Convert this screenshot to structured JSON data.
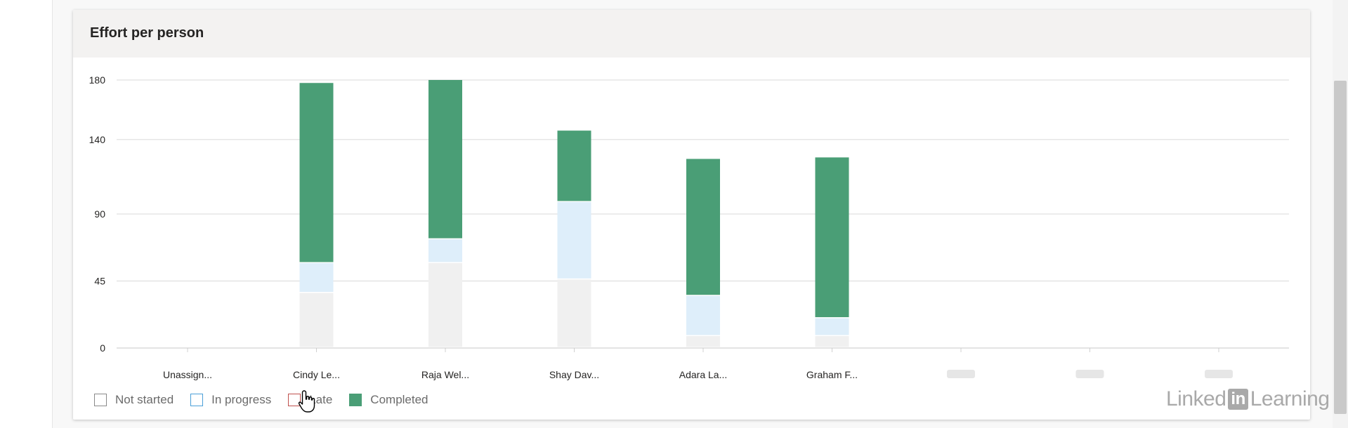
{
  "card": {
    "title": "Effort per person"
  },
  "chart_data": {
    "type": "bar",
    "stacked": true,
    "title": "Effort per person",
    "categories": [
      "Unassign...",
      "Cindy Le...",
      "Raja Wel...",
      "Shay Dav...",
      "Adara La...",
      "Graham F...",
      "",
      "",
      ""
    ],
    "yticks": [
      0,
      45,
      90,
      140,
      180
    ],
    "ylim": [
      0,
      180
    ],
    "grid": true,
    "legend_position": "bottom-left",
    "series": [
      {
        "name": "Not started",
        "color": "#f0f0f0",
        "values": [
          0,
          37,
          57,
          46,
          8,
          8,
          0,
          0,
          0
        ]
      },
      {
        "name": "In progress",
        "color": "#deeefa",
        "values": [
          0,
          20,
          16,
          52,
          27,
          12,
          0,
          0,
          0
        ]
      },
      {
        "name": "Late",
        "color": "#ffffff",
        "values": [
          0,
          0,
          0,
          0,
          0,
          0,
          0,
          0,
          0
        ]
      },
      {
        "name": "Completed",
        "color": "#4a9e76",
        "values": [
          0,
          121,
          107,
          48,
          92,
          108,
          0,
          0,
          0
        ]
      }
    ]
  },
  "legend": {
    "items": [
      {
        "label": "Not started",
        "border": "#8a8a8a",
        "fill": "#ffffff"
      },
      {
        "label": "In progress",
        "border": "#4a9fd8",
        "fill": "#ffffff"
      },
      {
        "label": "Late",
        "border": "#c0504d",
        "fill": "#ffffff"
      },
      {
        "label": "Completed",
        "border": "#4a9e76",
        "fill": "#4a9e76"
      }
    ]
  },
  "watermark": {
    "part1": "Linked",
    "part2": "in",
    "part3": "Learning"
  },
  "icons": {
    "cursor": "hand-pointer-icon"
  }
}
